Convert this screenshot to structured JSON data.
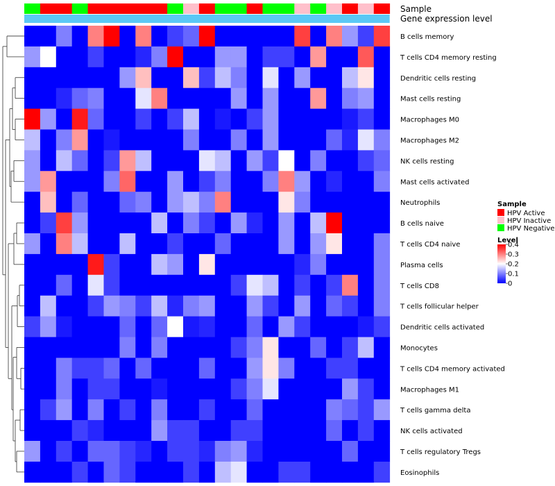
{
  "chart_data": {
    "type": "heatmap",
    "annotation_labels": {
      "sample": "Sample",
      "expression": "Gene expression level"
    },
    "sample_annotation": [
      "Negative",
      "Active",
      "Active",
      "Negative",
      "Active",
      "Active",
      "Active",
      "Active",
      "Active",
      "Negative",
      "Inactive",
      "Active",
      "Negative",
      "Negative",
      "Active",
      "Negative",
      "Negative",
      "Inactive",
      "Negative",
      "Inactive",
      "Active",
      "Inactive",
      "Active"
    ],
    "sample_colors": {
      "Active": "#ff0000",
      "Inactive": "#ffc0cb",
      "Negative": "#00ff00"
    },
    "expression_bar_color": "#5bc8f5",
    "row_labels": [
      "B cells memory",
      "T cells CD4 memory resting",
      "Dendritic cells resting",
      "Mast cells resting",
      "Macrophages M0",
      "Macrophages M2",
      "NK cells resting",
      "Mast cells activated",
      "Neutrophils",
      "B cells naive",
      "T cells CD4 naive",
      "Plasma cells",
      "T cells CD8",
      "T cells follicular helper",
      "Dendritic cells activated",
      "Monocytes",
      "T cells CD4 memory activated",
      "Macrophages M1",
      "T cells gamma delta",
      "NK cells activated",
      "T cells regulatory  Tregs",
      "Eosinophils"
    ],
    "values": [
      [
        0.0,
        0.0,
        0.1,
        0.0,
        0.3,
        0.4,
        0.0,
        0.3,
        0.0,
        0.05,
        0.08,
        0.4,
        0.0,
        0.0,
        0.0,
        0.0,
        0.0,
        0.35,
        0.0,
        0.3,
        0.12,
        0.05,
        0.35
      ],
      [
        0.12,
        0.2,
        0.0,
        0.0,
        0.05,
        0.0,
        0.0,
        0.03,
        0.1,
        0.4,
        0.0,
        0.0,
        0.12,
        0.12,
        0.0,
        0.05,
        0.05,
        0.0,
        0.28,
        0.0,
        0.0,
        0.33,
        0.0
      ],
      [
        0.0,
        0.0,
        0.0,
        0.0,
        0.0,
        0.0,
        0.12,
        0.25,
        0.0,
        0.0,
        0.25,
        0.05,
        0.15,
        0.1,
        0.0,
        0.18,
        0.0,
        0.12,
        0.0,
        0.0,
        0.15,
        0.22,
        0.0
      ],
      [
        0.0,
        0.0,
        0.03,
        0.08,
        0.1,
        0.0,
        0.0,
        0.18,
        0.3,
        0.0,
        0.0,
        0.0,
        0.0,
        0.12,
        0.0,
        0.12,
        0.0,
        0.0,
        0.28,
        0.0,
        0.1,
        0.12,
        0.0
      ],
      [
        0.4,
        0.12,
        0.0,
        0.38,
        0.08,
        0.0,
        0.0,
        0.05,
        0.0,
        0.05,
        0.15,
        0.0,
        0.02,
        0.0,
        0.05,
        0.12,
        0.0,
        0.0,
        0.0,
        0.0,
        0.02,
        0.05,
        0.0
      ],
      [
        0.15,
        0.0,
        0.1,
        0.28,
        0.0,
        0.02,
        0.0,
        0.0,
        0.0,
        0.0,
        0.1,
        0.0,
        0.0,
        0.1,
        0.0,
        0.12,
        0.0,
        0.0,
        0.0,
        0.08,
        0.03,
        0.18,
        0.1
      ],
      [
        0.12,
        0.0,
        0.15,
        0.08,
        0.0,
        0.05,
        0.28,
        0.15,
        0.0,
        0.0,
        0.0,
        0.18,
        0.15,
        0.0,
        0.12,
        0.05,
        0.2,
        0.0,
        0.1,
        0.0,
        0.0,
        0.05,
        0.08
      ],
      [
        0.12,
        0.28,
        0.0,
        0.0,
        0.0,
        0.1,
        0.32,
        0.0,
        0.0,
        0.12,
        0.0,
        0.05,
        0.1,
        0.0,
        0.0,
        0.1,
        0.3,
        0.12,
        0.0,
        0.03,
        0.0,
        0.0,
        0.1
      ],
      [
        0.0,
        0.25,
        0.0,
        0.08,
        0.0,
        0.0,
        0.08,
        0.1,
        0.0,
        0.12,
        0.15,
        0.1,
        0.3,
        0.0,
        0.0,
        0.0,
        0.22,
        0.1,
        0.0,
        0.0,
        0.0,
        0.0,
        0.0
      ],
      [
        0.0,
        0.05,
        0.35,
        0.12,
        0.0,
        0.0,
        0.0,
        0.0,
        0.15,
        0.0,
        0.1,
        0.05,
        0.0,
        0.12,
        0.03,
        0.0,
        0.12,
        0.0,
        0.15,
        0.4,
        0.0,
        0.0,
        0.0
      ],
      [
        0.12,
        0.0,
        0.3,
        0.15,
        0.0,
        0.0,
        0.15,
        0.0,
        0.0,
        0.05,
        0.0,
        0.0,
        0.08,
        0.0,
        0.0,
        0.0,
        0.12,
        0.0,
        0.12,
        0.22,
        0.0,
        0.0,
        0.1
      ],
      [
        0.0,
        0.0,
        0.0,
        0.0,
        0.38,
        0.05,
        0.0,
        0.0,
        0.15,
        0.12,
        0.0,
        0.22,
        0.0,
        0.0,
        0.0,
        0.0,
        0.0,
        0.03,
        0.1,
        0.0,
        0.0,
        0.0,
        0.1
      ],
      [
        0.0,
        0.0,
        0.08,
        0.0,
        0.18,
        0.05,
        0.0,
        0.0,
        0.0,
        0.0,
        0.0,
        0.0,
        0.0,
        0.05,
        0.18,
        0.15,
        0.0,
        0.05,
        0.0,
        0.05,
        0.3,
        0.0,
        0.1
      ],
      [
        0.0,
        0.15,
        0.0,
        0.0,
        0.05,
        0.12,
        0.1,
        0.05,
        0.15,
        0.03,
        0.1,
        0.12,
        0.0,
        0.0,
        0.12,
        0.05,
        0.0,
        0.12,
        0.0,
        0.08,
        0.05,
        0.0,
        0.1
      ],
      [
        0.05,
        0.12,
        0.02,
        0.0,
        0.0,
        0.0,
        0.08,
        0.0,
        0.08,
        0.2,
        0.02,
        0.03,
        0.0,
        0.0,
        0.08,
        0.0,
        0.12,
        0.05,
        0.0,
        0.0,
        0.0,
        0.02,
        0.05
      ],
      [
        0.0,
        0.0,
        0.0,
        0.0,
        0.0,
        0.0,
        0.1,
        0.0,
        0.1,
        0.0,
        0.0,
        0.0,
        0.0,
        0.05,
        0.1,
        0.22,
        0.0,
        0.0,
        0.08,
        0.0,
        0.05,
        0.15,
        0.0
      ],
      [
        0.0,
        0.0,
        0.1,
        0.05,
        0.05,
        0.08,
        0.0,
        0.08,
        0.0,
        0.0,
        0.0,
        0.08,
        0.0,
        0.0,
        0.12,
        0.22,
        0.1,
        0.0,
        0.0,
        0.05,
        0.05,
        0.0,
        0.0
      ],
      [
        0.0,
        0.0,
        0.1,
        0.0,
        0.05,
        0.05,
        0.0,
        0.0,
        0.02,
        0.0,
        0.0,
        0.0,
        0.0,
        0.05,
        0.1,
        0.18,
        0.0,
        0.0,
        0.0,
        0.0,
        0.12,
        0.05,
        0.0
      ],
      [
        0.0,
        0.05,
        0.12,
        0.0,
        0.1,
        0.0,
        0.05,
        0.0,
        0.1,
        0.0,
        0.0,
        0.05,
        0.0,
        0.0,
        0.08,
        0.0,
        0.0,
        0.0,
        0.0,
        0.1,
        0.08,
        0.05,
        0.12
      ],
      [
        0.0,
        0.0,
        0.0,
        0.05,
        0.03,
        0.0,
        0.0,
        0.0,
        0.12,
        0.05,
        0.05,
        0.0,
        0.0,
        0.05,
        0.05,
        0.0,
        0.0,
        0.0,
        0.0,
        0.08,
        0.0,
        0.05,
        0.0
      ],
      [
        0.12,
        0.0,
        0.05,
        0.0,
        0.08,
        0.08,
        0.05,
        0.03,
        0.0,
        0.05,
        0.05,
        0.03,
        0.1,
        0.12,
        0.03,
        0.0,
        0.0,
        0.0,
        0.0,
        0.0,
        0.08,
        0.0,
        0.0
      ],
      [
        0.0,
        0.0,
        0.0,
        0.05,
        0.0,
        0.08,
        0.05,
        0.0,
        0.0,
        0.0,
        0.05,
        0.0,
        0.15,
        0.18,
        0.0,
        0.0,
        0.05,
        0.05,
        0.0,
        0.0,
        0.0,
        0.0,
        0.05
      ]
    ],
    "legend": {
      "sample_title": "Sample",
      "sample_entries": [
        {
          "label": "HPV Active",
          "color": "#ff0000"
        },
        {
          "label": "HPV Inactive",
          "color": "#ffc0cb"
        },
        {
          "label": "HPV Negative",
          "color": "#00ff00"
        }
      ],
      "level_title": "Level",
      "level_ticks": [
        "0.4",
        "0.3",
        "0.2",
        "0.1",
        "0"
      ],
      "level_range": [
        0,
        0.4
      ]
    },
    "color_scale": {
      "low": "#0000ff",
      "mid": "#ffffff",
      "high": "#ff0000",
      "mid_value": 0.2
    }
  }
}
